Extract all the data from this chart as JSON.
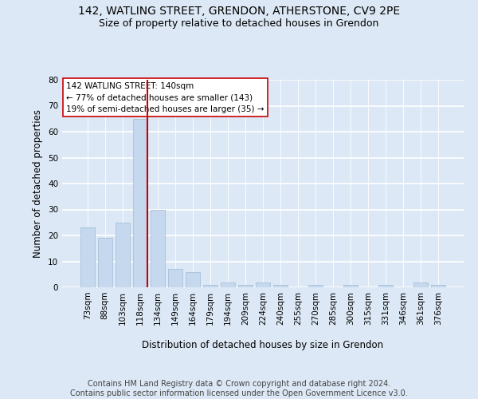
{
  "title_line1": "142, WATLING STREET, GRENDON, ATHERSTONE, CV9 2PE",
  "title_line2": "Size of property relative to detached houses in Grendon",
  "xlabel": "Distribution of detached houses by size in Grendon",
  "ylabel": "Number of detached properties",
  "categories": [
    "73sqm",
    "88sqm",
    "103sqm",
    "118sqm",
    "134sqm",
    "149sqm",
    "164sqm",
    "179sqm",
    "194sqm",
    "209sqm",
    "224sqm",
    "240sqm",
    "255sqm",
    "270sqm",
    "285sqm",
    "300sqm",
    "315sqm",
    "331sqm",
    "346sqm",
    "361sqm",
    "376sqm"
  ],
  "values": [
    23,
    19,
    25,
    65,
    30,
    7,
    6,
    1,
    2,
    1,
    2,
    1,
    0,
    1,
    0,
    1,
    0,
    1,
    0,
    2,
    1
  ],
  "bar_color": "#c5d8ed",
  "bar_edgecolor": "#9dbbd6",
  "vline_x": 3.42,
  "vline_color": "#cc0000",
  "annotation_text": "142 WATLING STREET: 140sqm\n← 77% of detached houses are smaller (143)\n19% of semi-detached houses are larger (35) →",
  "ylim": [
    0,
    80
  ],
  "yticks": [
    0,
    10,
    20,
    30,
    40,
    50,
    60,
    70,
    80
  ],
  "footer_text": "Contains HM Land Registry data © Crown copyright and database right 2024.\nContains public sector information licensed under the Open Government Licence v3.0.",
  "bg_color": "#dce8f5",
  "grid_color": "white",
  "title_fontsize": 10,
  "subtitle_fontsize": 9,
  "axis_label_fontsize": 8.5,
  "tick_fontsize": 7.5,
  "annot_fontsize": 7.5,
  "footer_fontsize": 7
}
